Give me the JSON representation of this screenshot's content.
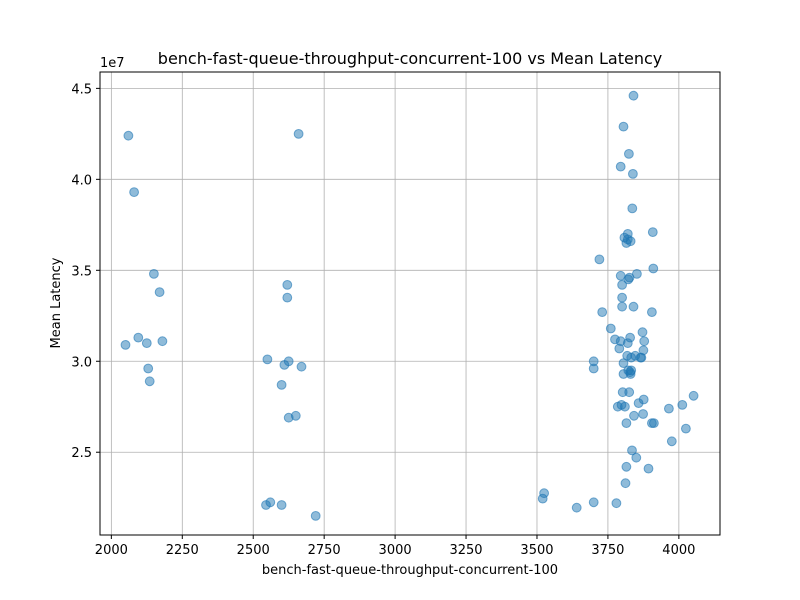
{
  "chart_data": {
    "type": "scatter",
    "title": "bench-fast-queue-throughput-concurrent-100 vs Mean Latency",
    "xlabel": "bench-fast-queue-throughput-concurrent-100",
    "ylabel": "Mean Latency",
    "y_offset_label": "1e7",
    "xlim": [
      1960,
      4145
    ],
    "ylim": [
      20450000,
      45900000
    ],
    "x_ticks": [
      2000,
      2250,
      2500,
      2750,
      3000,
      3250,
      3500,
      3750,
      4000
    ],
    "x_tick_labels": [
      "2000",
      "2250",
      "2500",
      "2750",
      "3000",
      "3250",
      "3500",
      "3750",
      "4000"
    ],
    "y_ticks": [
      25000000,
      30000000,
      35000000,
      40000000,
      45000000
    ],
    "y_tick_labels": [
      "2.5",
      "3.0",
      "3.5",
      "4.0",
      "4.5"
    ],
    "grid": true,
    "point_color": "#1f77b4",
    "point_opacity": 0.5,
    "series": [
      {
        "points": [
          [
            2060,
            42400000
          ],
          [
            2080,
            39300000
          ],
          [
            2050,
            30900000
          ],
          [
            2095,
            31300000
          ],
          [
            2125,
            31000000
          ],
          [
            2130,
            29600000
          ],
          [
            2135,
            28900000
          ],
          [
            2150,
            34800000
          ],
          [
            2170,
            33800000
          ],
          [
            2180,
            31100000
          ],
          [
            2545,
            22100000
          ],
          [
            2550,
            30100000
          ],
          [
            2560,
            22250000
          ],
          [
            2600,
            28700000
          ],
          [
            2600,
            22100000
          ],
          [
            2610,
            29800000
          ],
          [
            2620,
            33500000
          ],
          [
            2620,
            34200000
          ],
          [
            2625,
            30000000
          ],
          [
            2625,
            26900000
          ],
          [
            2650,
            27000000
          ],
          [
            2660,
            42500000
          ],
          [
            2670,
            29700000
          ],
          [
            2720,
            21500000
          ],
          [
            3520,
            22450000
          ],
          [
            3525,
            22750000
          ],
          [
            3640,
            21950000
          ],
          [
            3700,
            22250000
          ],
          [
            3700,
            29600000
          ],
          [
            3700,
            30000000
          ],
          [
            3720,
            35600000
          ],
          [
            3730,
            32700000
          ],
          [
            3760,
            31800000
          ],
          [
            3775,
            31200000
          ],
          [
            3780,
            22200000
          ],
          [
            3785,
            27500000
          ],
          [
            3790,
            30700000
          ],
          [
            3795,
            31100000
          ],
          [
            3795,
            40700000
          ],
          [
            3795,
            34700000
          ],
          [
            3798,
            27600000
          ],
          [
            3800,
            33000000
          ],
          [
            3800,
            34200000
          ],
          [
            3800,
            33500000
          ],
          [
            3802,
            28300000
          ],
          [
            3805,
            42900000
          ],
          [
            3805,
            29300000
          ],
          [
            3805,
            29900000
          ],
          [
            3808,
            36800000
          ],
          [
            3810,
            27500000
          ],
          [
            3812,
            23300000
          ],
          [
            3815,
            24200000
          ],
          [
            3815,
            36500000
          ],
          [
            3815,
            26600000
          ],
          [
            3818,
            30300000
          ],
          [
            3820,
            36700000
          ],
          [
            3820,
            37000000
          ],
          [
            3820,
            31000000
          ],
          [
            3822,
            29500000
          ],
          [
            3822,
            34500000
          ],
          [
            3824,
            41400000
          ],
          [
            3825,
            28300000
          ],
          [
            3826,
            34600000
          ],
          [
            3828,
            29400000
          ],
          [
            3828,
            31300000
          ],
          [
            3830,
            36600000
          ],
          [
            3830,
            29300000
          ],
          [
            3832,
            30200000
          ],
          [
            3832,
            29500000
          ],
          [
            3835,
            25100000
          ],
          [
            3836,
            38400000
          ],
          [
            3838,
            40300000
          ],
          [
            3840,
            44600000
          ],
          [
            3840,
            33000000
          ],
          [
            3842,
            27000000
          ],
          [
            3846,
            30300000
          ],
          [
            3850,
            24700000
          ],
          [
            3852,
            34800000
          ],
          [
            3858,
            27700000
          ],
          [
            3865,
            30200000
          ],
          [
            3868,
            30200000
          ],
          [
            3872,
            31600000
          ],
          [
            3874,
            27100000
          ],
          [
            3875,
            30600000
          ],
          [
            3876,
            27900000
          ],
          [
            3878,
            31100000
          ],
          [
            3893,
            24100000
          ],
          [
            3905,
            32700000
          ],
          [
            3905,
            26600000
          ],
          [
            3908,
            37100000
          ],
          [
            3910,
            35100000
          ],
          [
            3912,
            26600000
          ],
          [
            3965,
            27400000
          ],
          [
            3975,
            25600000
          ],
          [
            4012,
            27600000
          ],
          [
            4025,
            26300000
          ],
          [
            4052,
            28100000
          ]
        ]
      }
    ]
  }
}
